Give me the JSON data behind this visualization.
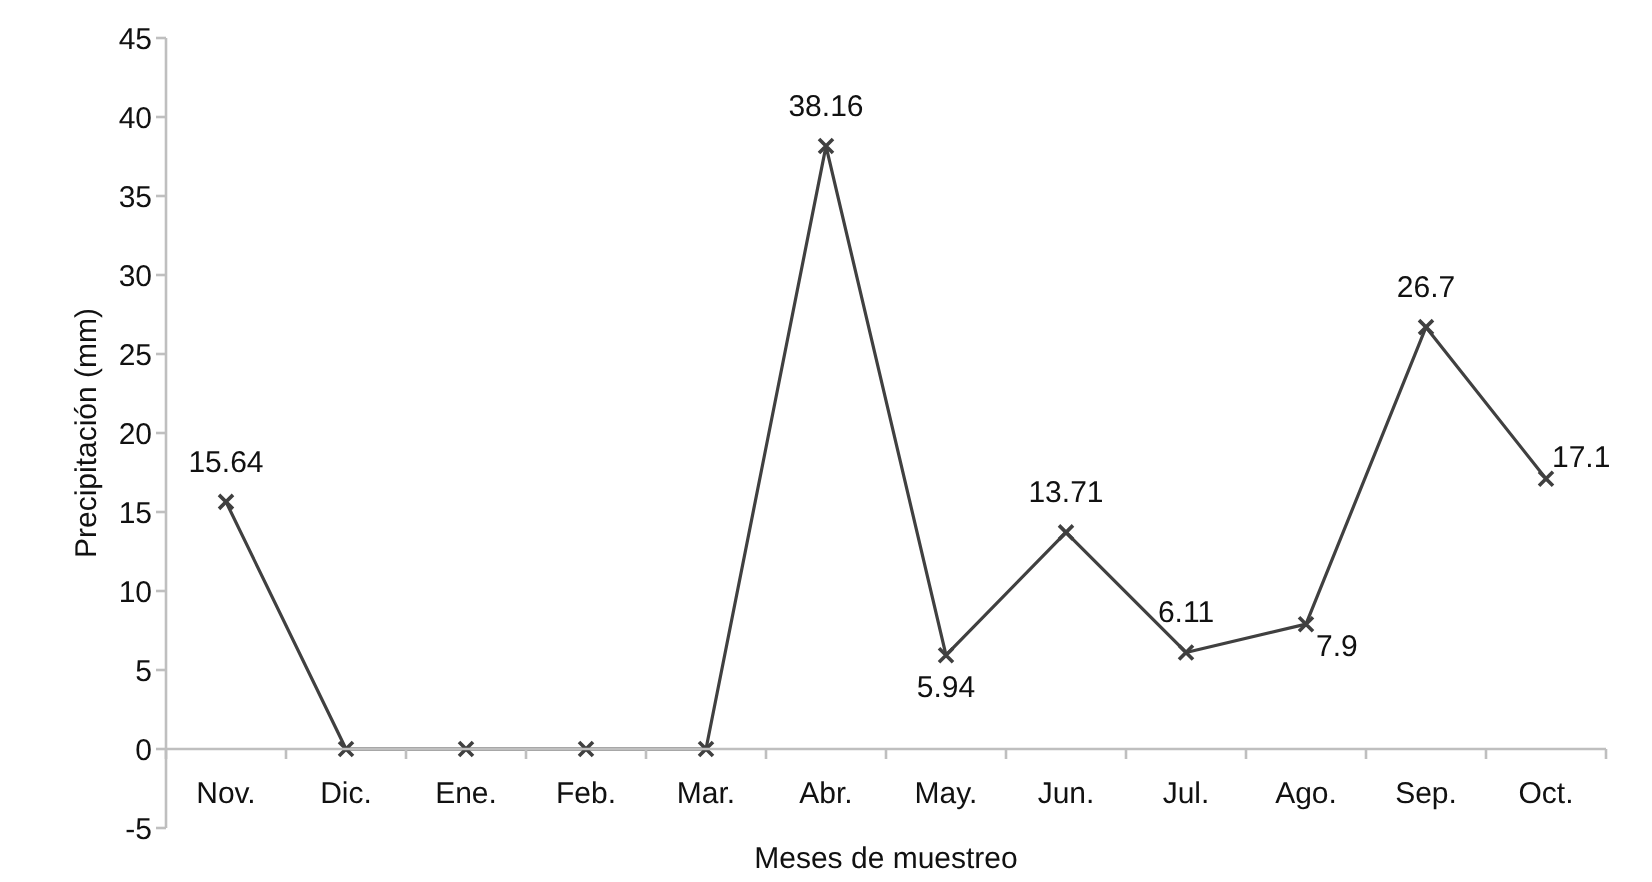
{
  "chart_data": {
    "type": "line",
    "xlabel": "Meses de muestreo",
    "ylabel": "Precipitación (mm)",
    "categories": [
      "Nov.",
      "Dic.",
      "Ene.",
      "Feb.",
      "Mar.",
      "Abr.",
      "May.",
      "Jun.",
      "Jul.",
      "Ago.",
      "Sep.",
      "Oct."
    ],
    "series": [
      {
        "color": "#404040",
        "values": [
          15.64,
          0,
          0,
          0,
          0,
          38.16,
          5.94,
          13.71,
          6.11,
          7.9,
          26.7,
          17.1
        ],
        "value_labels": [
          "15.64",
          null,
          null,
          null,
          null,
          "38.16",
          "5.94",
          "13.71",
          "6.11",
          "7.9",
          "26.7",
          "17.1"
        ]
      }
    ],
    "ylim": [
      -5,
      45
    ],
    "yticks": [
      -5,
      0,
      5,
      10,
      15,
      20,
      25,
      30,
      35,
      40,
      45
    ],
    "marker": "cross",
    "line_style": "solid"
  }
}
